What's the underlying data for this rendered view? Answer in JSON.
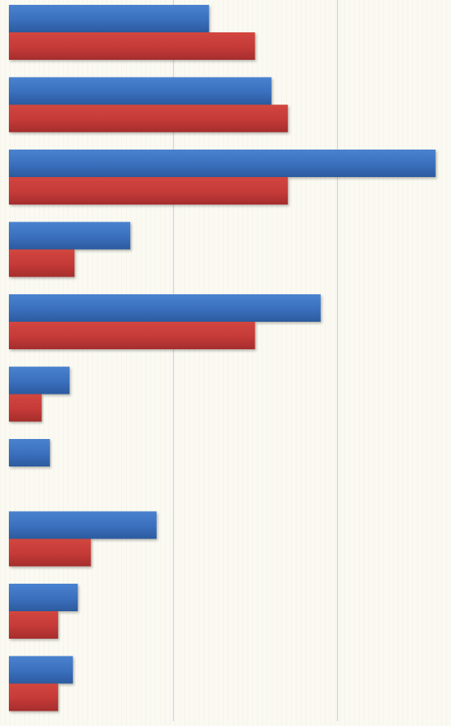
{
  "chart_data": {
    "type": "bar",
    "orientation": "horizontal",
    "categories": [
      "",
      "",
      "",
      "",
      "",
      "",
      "",
      "",
      "",
      ""
    ],
    "series": [
      {
        "values": [
          6.1,
          8.0,
          13.0,
          3.7,
          9.5,
          1.85,
          1.25,
          4.5,
          2.1,
          1.95
        ]
      },
      {
        "values": [
          7.5,
          8.5,
          8.5,
          2.0,
          7.5,
          1.0,
          0,
          2.5,
          1.5,
          1.5
        ]
      }
    ],
    "xlim": [
      0,
      13.2
    ],
    "gridlines": [
      5,
      10
    ],
    "grid": true,
    "legend": "none",
    "colors": {
      "series_1": "#3a6fbd",
      "series_2": "#c43a38",
      "background": "#fbfaf2",
      "gridline": "#c9d6df"
    }
  }
}
